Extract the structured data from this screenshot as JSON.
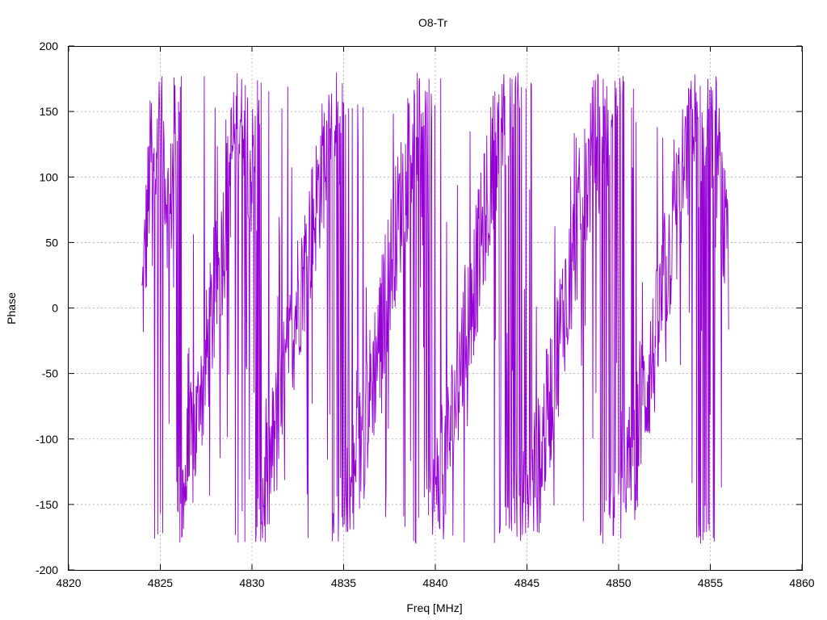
{
  "chart_data": {
    "type": "line",
    "title": "O8-Tr",
    "xlabel": "Freq [MHz]",
    "ylabel": "Phase",
    "xlim": [
      4820,
      4860
    ],
    "ylim": [
      -200,
      200
    ],
    "x_ticks": [
      4820,
      4825,
      4830,
      4835,
      4840,
      4845,
      4850,
      4855,
      4860
    ],
    "y_ticks": [
      -200,
      -150,
      -100,
      -50,
      0,
      50,
      100,
      150,
      200
    ],
    "x_tick_labels": [
      "4820",
      "4825",
      "4830",
      "4835",
      "4840",
      "4845",
      "4850",
      "4855",
      "4860"
    ],
    "y_tick_labels": [
      "-200",
      "-150",
      "-100",
      "-50",
      "0",
      "50",
      "100",
      "150",
      "200"
    ],
    "grid": true,
    "legend": "none",
    "series": [
      {
        "color": "#9400d3",
        "x_start": 4824.0,
        "x_end": 4856.0,
        "wrap_period_mhz": 5.0,
        "phase_wrap_limits": [
          -180,
          180
        ],
        "x": [
          4824.0,
          4824.5,
          4825.0,
          4825.5,
          4826.0,
          4826.5,
          4827.0,
          4827.5,
          4828.0,
          4828.5,
          4829.0,
          4829.5,
          4830.0,
          4830.5,
          4831.0,
          4831.5,
          4832.0,
          4832.5,
          4833.0,
          4833.5,
          4834.0,
          4834.5,
          4835.0,
          4835.5,
          4836.0,
          4836.5,
          4837.0,
          4837.5,
          4838.0,
          4838.5,
          4839.0,
          4839.5,
          4840.0,
          4840.5,
          4841.0,
          4841.5,
          4842.0,
          4842.5,
          4843.0,
          4843.5,
          4844.0,
          4844.5,
          4845.0,
          4845.5,
          4846.0,
          4846.5,
          4847.0,
          4847.5,
          4848.0,
          4848.5,
          4849.0,
          4849.5,
          4850.0,
          4850.5,
          4851.0,
          4851.5,
          4852.0,
          4852.5,
          4853.0,
          4853.5,
          4854.0,
          4854.5,
          4855.0,
          4855.5,
          4856.0
        ],
        "trend_phase": [
          0,
          120,
          160,
          60,
          -170,
          -120,
          -90,
          -40,
          10,
          60,
          130,
          160,
          100,
          -150,
          -120,
          -80,
          -40,
          10,
          40,
          80,
          120,
          160,
          -170,
          -140,
          -100,
          -60,
          -20,
          30,
          70,
          110,
          140,
          170,
          -150,
          -120,
          -80,
          -30,
          10,
          50,
          100,
          140,
          170,
          -150,
          -170,
          -130,
          -90,
          -50,
          0,
          40,
          80,
          110,
          150,
          170,
          -160,
          -130,
          -100,
          -60,
          -30,
          20,
          60,
          100,
          130,
          150,
          170,
          100,
          20
        ]
      }
    ]
  }
}
